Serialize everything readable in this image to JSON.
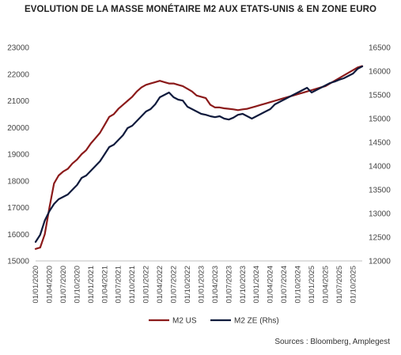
{
  "title": "EVOLUTION DE LA MASSE MONÉTAIRE M2 AUX ETATS-UNIS & EN ZONE EURO",
  "source": "Sources : Bloomberg, Amplegest",
  "chart_data": {
    "type": "line",
    "x": [
      "2020-01",
      "2020-02",
      "2020-03",
      "2020-04",
      "2020-05",
      "2020-06",
      "2020-07",
      "2020-08",
      "2020-09",
      "2020-10",
      "2020-11",
      "2020-12",
      "2021-01",
      "2021-02",
      "2021-03",
      "2021-04",
      "2021-05",
      "2021-06",
      "2021-07",
      "2021-08",
      "2021-09",
      "2021-10",
      "2021-11",
      "2021-12",
      "2022-01",
      "2022-02",
      "2022-03",
      "2022-04",
      "2022-05",
      "2022-06",
      "2022-07",
      "2022-08",
      "2022-09",
      "2022-10",
      "2022-11",
      "2022-12",
      "2023-01",
      "2023-02",
      "2023-03",
      "2023-04",
      "2023-05",
      "2023-06",
      "2023-07",
      "2023-08",
      "2023-09",
      "2023-10",
      "2023-11",
      "2023-12",
      "2024-01",
      "2024-02",
      "2024-03",
      "2024-04",
      "2024-05",
      "2024-06",
      "2024-07",
      "2024-08",
      "2024-09",
      "2024-10",
      "2024-11",
      "2024-12",
      "2025-01",
      "2025-02",
      "2025-03",
      "2025-04",
      "2025-05",
      "2025-06",
      "2025-07",
      "2025-08",
      "2025-09",
      "2025-10",
      "2025-11",
      "2025-12"
    ],
    "x_tick_labels": [
      "01/01/2020",
      "01/04/2020",
      "01/07/2020",
      "01/10/2020",
      "01/01/2021",
      "01/04/2021",
      "01/07/2021",
      "01/10/2021",
      "01/01/2022",
      "01/04/2022",
      "01/07/2022",
      "01/10/2022",
      "01/01/2023",
      "01/04/2023",
      "01/07/2023",
      "01/10/2023",
      "01/01/2024",
      "01/04/2024",
      "01/07/2024",
      "01/10/2024",
      "01/01/2025",
      "01/04/2025",
      "01/07/2025",
      "01/10/2025"
    ],
    "y_left": {
      "min": 15000,
      "max": 23000,
      "step": 1000
    },
    "y_right": {
      "min": 12000,
      "max": 16500,
      "step": 500
    },
    "grid": false,
    "legend": "bottom",
    "series": [
      {
        "name": "M2 US",
        "axis": "left",
        "color": "#8b1a1a",
        "values": [
          15450,
          15500,
          16000,
          17000,
          17900,
          18200,
          18350,
          18450,
          18650,
          18800,
          19000,
          19150,
          19400,
          19600,
          19800,
          20100,
          20400,
          20500,
          20700,
          20850,
          21000,
          21150,
          21350,
          21500,
          21600,
          21650,
          21700,
          21750,
          21700,
          21650,
          21650,
          21600,
          21550,
          21450,
          21350,
          21200,
          21150,
          21100,
          20850,
          20750,
          20750,
          20720,
          20700,
          20680,
          20650,
          20680,
          20700,
          20750,
          20800,
          20850,
          20900,
          20950,
          21000,
          21050,
          21100,
          21150,
          21200,
          21250,
          21300,
          21350,
          21400,
          21450,
          21500,
          21550,
          21650,
          21750,
          21850,
          21950,
          22050,
          22150,
          22250,
          22300
        ]
      },
      {
        "name": "M2 ZE (Rhs)",
        "axis": "right",
        "color": "#0f1a3c",
        "values": [
          12400,
          12550,
          12850,
          13050,
          13200,
          13300,
          13350,
          13400,
          13500,
          13600,
          13750,
          13800,
          13900,
          14000,
          14100,
          14250,
          14400,
          14450,
          14550,
          14650,
          14800,
          14850,
          14950,
          15050,
          15150,
          15200,
          15300,
          15450,
          15500,
          15550,
          15450,
          15400,
          15380,
          15250,
          15200,
          15150,
          15100,
          15080,
          15050,
          15030,
          15050,
          15000,
          14980,
          15020,
          15080,
          15100,
          15050,
          15000,
          15050,
          15100,
          15150,
          15200,
          15300,
          15350,
          15400,
          15450,
          15500,
          15550,
          15600,
          15650,
          15550,
          15600,
          15650,
          15700,
          15750,
          15780,
          15820,
          15850,
          15900,
          15950,
          16050,
          16100
        ]
      }
    ]
  }
}
